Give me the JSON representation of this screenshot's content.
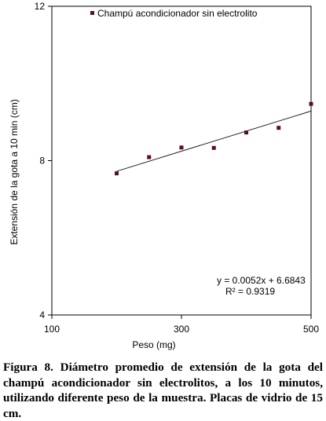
{
  "chart_data": {
    "type": "scatter",
    "title": "",
    "xlabel": "Peso (mg)",
    "ylabel": "Extensión de la gota a 10 min (cm)",
    "xlim": [
      100,
      500
    ],
    "ylim": [
      4,
      12
    ],
    "x_ticks": [
      "100",
      "300",
      "500"
    ],
    "y_ticks": [
      "4",
      "8",
      "12"
    ],
    "legend": {
      "placement": "top",
      "entries": [
        "Champú acondicionador sin electrolito"
      ]
    },
    "series": [
      {
        "name": "Champú acondicionador sin electrolito",
        "marker_color": "#5a0f1e",
        "points": [
          {
            "x": 200,
            "y": 7.67
          },
          {
            "x": 250,
            "y": 8.09
          },
          {
            "x": 300,
            "y": 8.34
          },
          {
            "x": 350,
            "y": 8.33
          },
          {
            "x": 400,
            "y": 8.73
          },
          {
            "x": 450,
            "y": 8.85
          },
          {
            "x": 500,
            "y": 9.47
          }
        ]
      }
    ],
    "trendline": {
      "slope": 0.0052,
      "intercept": 6.6843,
      "x_range": [
        200,
        500
      ],
      "equation": "y = 0.0052x + 6.6843",
      "r_squared": "R² = 0.9319"
    },
    "grid": false
  },
  "caption": "Figura 8. Diámetro promedio de extensión de la gota del champú acondicionador sin electrolitos, a los 10 minutos, utilizando diferente peso de la muestra. Placas de vidrio de 15 cm."
}
